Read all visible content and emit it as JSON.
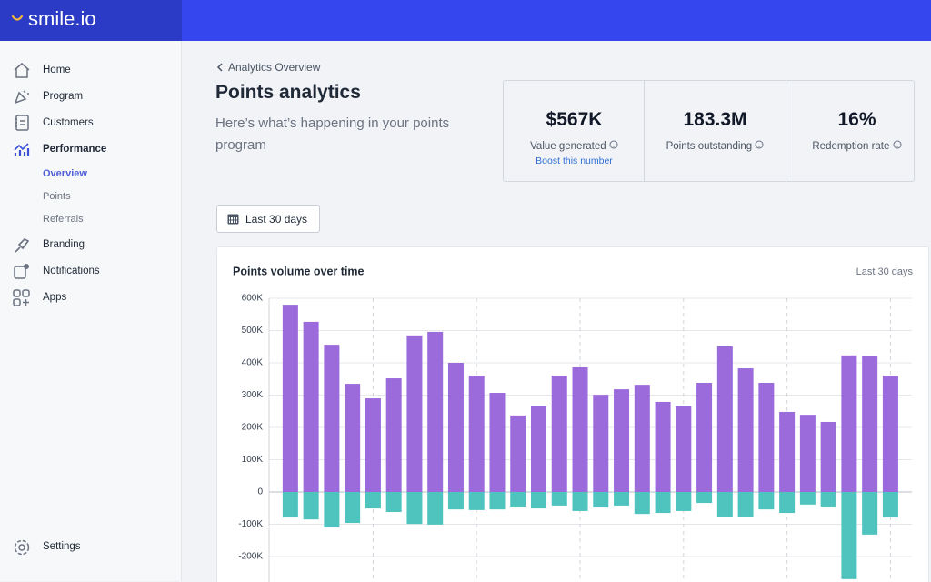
{
  "header": {
    "logo": "smile.io"
  },
  "sidebar": {
    "nav": [
      "Home",
      "Program",
      "Customers",
      "Performance"
    ],
    "subnav": [
      "Overview",
      "Points",
      "Referrals"
    ],
    "nav_more": [
      "Branding",
      "Notifications",
      "Apps"
    ],
    "settings": "Settings"
  },
  "main": {
    "breadcrumb": "Analytics Overview",
    "title": "Points analytics",
    "subtitle": "Here’s what’s happening in your points program",
    "stats": [
      {
        "value": "$567K",
        "label": "Value generated",
        "link": "Boost this number"
      },
      {
        "value": "183.3M",
        "label": "Points outstanding"
      },
      {
        "value": "16%",
        "label": "Redemption rate"
      }
    ],
    "date_button": "Last 30 days"
  },
  "chart_data": {
    "type": "bar",
    "stacked": true,
    "title": "Points volume over time",
    "subtitle": "Last 30 days",
    "categories": [
      null,
      null,
      null,
      null,
      null,
      null,
      null,
      null,
      null,
      null,
      null,
      null,
      null,
      null,
      null,
      null,
      null,
      null,
      null,
      null,
      null,
      null,
      null,
      null,
      null,
      null,
      null,
      null,
      null,
      null
    ],
    "series": [
      {
        "color": "#9b6bdc",
        "values": [
          580000,
          527000,
          456000,
          335000,
          290000,
          352000,
          485000,
          496000,
          400000,
          360000,
          307000,
          237000,
          265000,
          360000,
          386000,
          301000,
          318000,
          332000,
          279000,
          265000,
          338000,
          451000,
          383000,
          338000,
          248000,
          239000,
          217000,
          423000,
          420000,
          360000
        ]
      },
      {
        "color": "#4fc4bf",
        "values": [
          -79000,
          -85000,
          -110000,
          -96000,
          -51000,
          -62000,
          -99000,
          -101000,
          -54000,
          -56000,
          -54000,
          -45000,
          -51000,
          -42000,
          -59000,
          -48000,
          -42000,
          -68000,
          -65000,
          -59000,
          -34000,
          -76000,
          -76000,
          -54000,
          -65000,
          -39000,
          -45000,
          -270000,
          -132000,
          -79000
        ]
      }
    ],
    "ylim": [
      -280000,
      600000
    ],
    "yticks": [
      {
        "value": 600000,
        "label": "600K"
      },
      {
        "value": 500000,
        "label": "500K"
      },
      {
        "value": 400000,
        "label": "400K"
      },
      {
        "value": 300000,
        "label": "300K"
      },
      {
        "value": 200000,
        "label": "200K"
      },
      {
        "value": 100000,
        "label": "100K"
      },
      0,
      {
        "value": -100000,
        "label": "-100K"
      },
      {
        "value": -200000,
        "label": "-200K"
      }
    ],
    "grid": true
  }
}
